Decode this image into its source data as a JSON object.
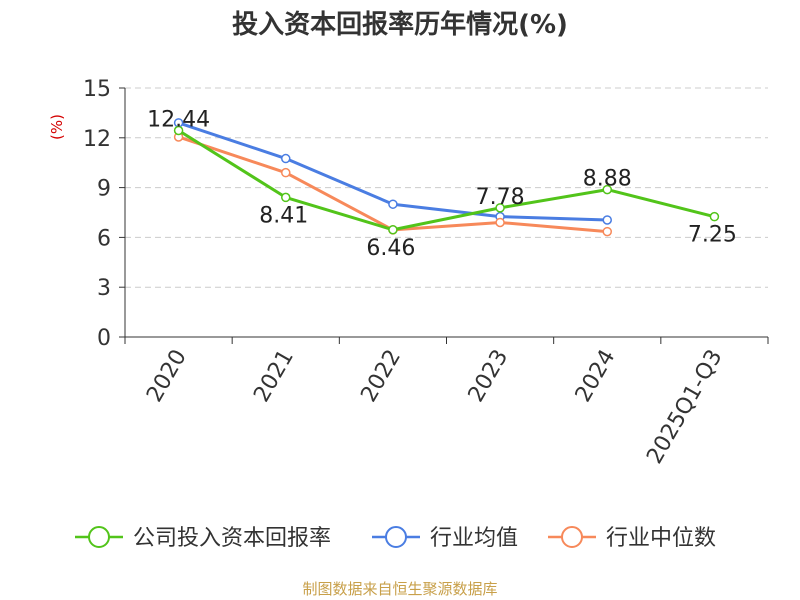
{
  "title": "投入资本回报率历年情况(%)",
  "source": "制图数据来自恒生聚源数据库",
  "colors": {
    "company": "#52c41a",
    "industry_avg": "#4a7de2",
    "industry_median": "#f7895a",
    "grid": "#cccccc",
    "axis": "#333333",
    "unit": "#d40000"
  },
  "chart_data": {
    "type": "line",
    "title": "投入资本回报率历年情况(%)",
    "ylabel": "(%)",
    "xlabel": "",
    "categories": [
      "2020",
      "2021",
      "2022",
      "2023",
      "2024",
      "2025Q1-Q3"
    ],
    "ylim": [
      0,
      15
    ],
    "yticks": [
      0,
      3,
      6,
      9,
      12,
      15
    ],
    "grid": true,
    "legend_position": "bottom",
    "series": [
      {
        "name": "公司投入资本回报率",
        "color_key": "company",
        "values": [
          12.44,
          8.41,
          6.46,
          7.78,
          8.88,
          7.25
        ],
        "labels": [
          "12.44",
          "8.41",
          "6.46",
          "7.78",
          "8.88",
          "7.25"
        ]
      },
      {
        "name": "行业均值",
        "color_key": "industry_avg",
        "values": [
          12.9,
          10.75,
          8.0,
          7.25,
          7.05,
          null
        ]
      },
      {
        "name": "行业中位数",
        "color_key": "industry_median",
        "values": [
          12.05,
          9.9,
          6.45,
          6.9,
          6.35,
          null
        ]
      }
    ]
  }
}
